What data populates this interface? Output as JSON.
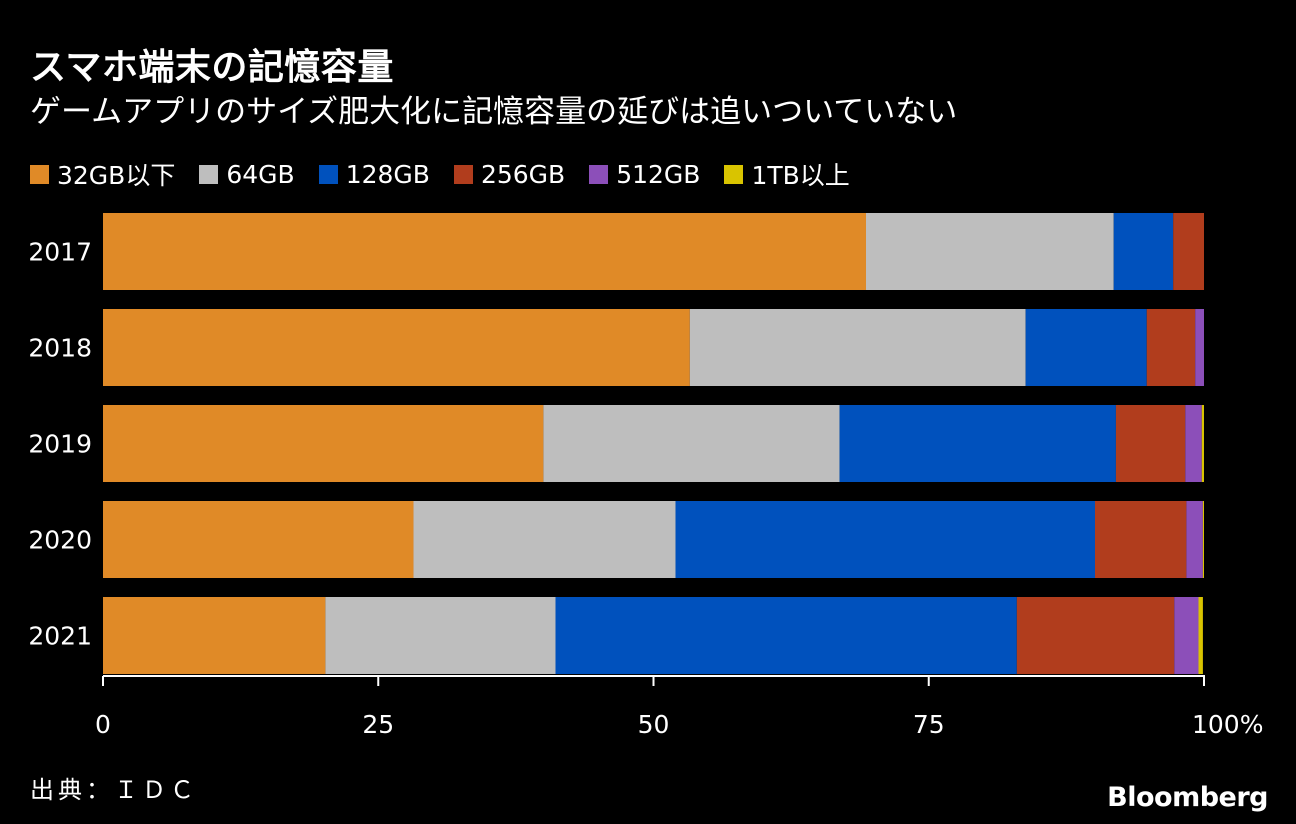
{
  "title": "スマホ端末の記憶容量",
  "subtitle": "ゲームアプリのサイズ肥大化に記憶容量の延びは追いついていない",
  "source": "出典：ＩＤＣ",
  "brand": "Bloomberg",
  "colors": {
    "background": "#000000",
    "text": "#ffffff",
    "axis": "#ffffff"
  },
  "chart_data": {
    "type": "bar",
    "orientation": "horizontal",
    "stacked": true,
    "title": "スマホ端末の記憶容量",
    "subtitle": "ゲームアプリのサイズ肥大化に記憶容量の延びは追いついていない",
    "xlabel": "",
    "ylabel": "",
    "xlim": [
      0,
      100
    ],
    "xticks": [
      0,
      25,
      50,
      75,
      100
    ],
    "xtick_labels": [
      "0",
      "25",
      "50",
      "75",
      "100%"
    ],
    "grid": false,
    "legend_position": "top-left",
    "categories": [
      "2017",
      "2018",
      "2019",
      "2020",
      "2021"
    ],
    "series": [
      {
        "name": "32GB以下",
        "color": "#e08a27",
        "values": [
          69.3,
          53.3,
          40.0,
          28.2,
          20.2
        ]
      },
      {
        "name": "64GB",
        "color": "#bebebe",
        "values": [
          22.5,
          30.5,
          26.9,
          23.8,
          20.9
        ]
      },
      {
        "name": "128GB",
        "color": "#0051bd",
        "values": [
          5.4,
          11.0,
          25.1,
          38.1,
          41.9
        ]
      },
      {
        "name": "256GB",
        "color": "#b13d1d",
        "values": [
          2.8,
          4.4,
          6.3,
          8.3,
          14.3
        ]
      },
      {
        "name": "512GB",
        "color": "#8c4fb9",
        "values": [
          0.0,
          0.8,
          1.5,
          1.5,
          2.2
        ]
      },
      {
        "name": "1TB以上",
        "color": "#d9c400",
        "values": [
          0.0,
          0.0,
          0.2,
          0.1,
          0.4
        ]
      }
    ]
  }
}
